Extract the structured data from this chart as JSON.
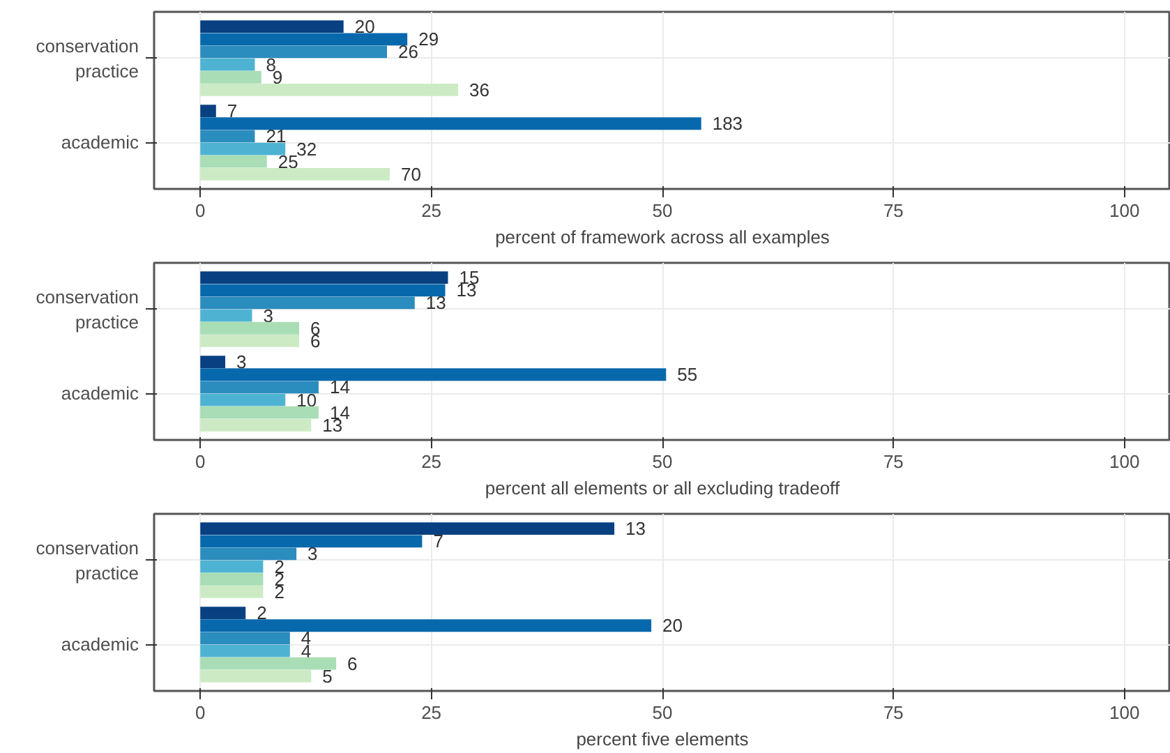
{
  "chart_data": [
    {
      "type": "bar",
      "orientation": "horizontal",
      "xlabel": "percent of framework across all examples",
      "categories": [
        "conservation practice",
        "academic"
      ],
      "xlim": [
        -5,
        105
      ],
      "xticks": [
        0,
        25,
        50,
        75,
        100
      ],
      "grid": true,
      "series": [
        {
          "color": "#084081",
          "values": [
            15.5,
            1.7
          ]
        },
        {
          "color": "#0868ac",
          "values": [
            22.4,
            54.2
          ]
        },
        {
          "color": "#2b8cbe",
          "values": [
            20.2,
            5.9
          ]
        },
        {
          "color": "#4eb3d3",
          "values": [
            5.9,
            9.2
          ]
        },
        {
          "color": "#a8ddb5",
          "values": [
            6.6,
            7.2
          ]
        },
        {
          "color": "#ccebc5",
          "values": [
            27.9,
            20.5
          ]
        }
      ],
      "annotations": [
        "20",
        "7",
        "29",
        "183",
        "26",
        "21",
        "8",
        "32",
        "9",
        "25",
        "36",
        "70"
      ]
    },
    {
      "type": "bar",
      "orientation": "horizontal",
      "xlabel": "percent all elements or all excluding tradeoff",
      "categories": [
        "conservation practice",
        "academic"
      ],
      "xlim": [
        -5,
        105
      ],
      "xticks": [
        0,
        25,
        50,
        75,
        100
      ],
      "grid": true,
      "series": [
        {
          "color": "#084081",
          "values": [
            26.8,
            2.7
          ]
        },
        {
          "color": "#0868ac",
          "values": [
            26.5,
            50.4
          ]
        },
        {
          "color": "#2b8cbe",
          "values": [
            23.2,
            12.8
          ]
        },
        {
          "color": "#4eb3d3",
          "values": [
            5.6,
            9.2
          ]
        },
        {
          "color": "#a8ddb5",
          "values": [
            10.7,
            12.8
          ]
        },
        {
          "color": "#ccebc5",
          "values": [
            10.7,
            12.0
          ]
        }
      ],
      "annotations": [
        "15",
        "3",
        "13",
        "55",
        "13",
        "14",
        "3",
        "10",
        "6",
        "14",
        "6",
        "13"
      ]
    },
    {
      "type": "bar",
      "orientation": "horizontal",
      "xlabel": "percent five elements",
      "categories": [
        "conservation practice",
        "academic"
      ],
      "xlim": [
        -5,
        105
      ],
      "xticks": [
        0,
        25,
        50,
        75,
        100
      ],
      "grid": true,
      "series": [
        {
          "color": "#084081",
          "values": [
            44.8,
            4.9
          ]
        },
        {
          "color": "#0868ac",
          "values": [
            24.0,
            48.8
          ]
        },
        {
          "color": "#2b8cbe",
          "values": [
            10.4,
            9.7
          ]
        },
        {
          "color": "#4eb3d3",
          "values": [
            6.8,
            9.7
          ]
        },
        {
          "color": "#a8ddb5",
          "values": [
            6.8,
            14.7
          ]
        },
        {
          "color": "#ccebc5",
          "values": [
            6.8,
            12.0
          ]
        }
      ],
      "annotations": [
        "13",
        "2",
        "7",
        "20",
        "3",
        "4",
        "2",
        "4",
        "2",
        "6",
        "2",
        "5"
      ]
    }
  ]
}
